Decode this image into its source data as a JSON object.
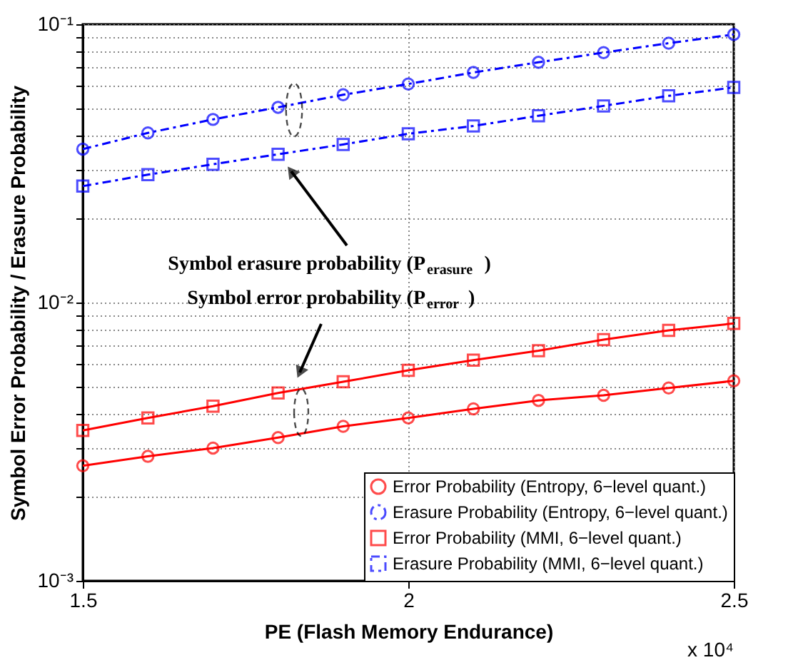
{
  "chart_data": {
    "type": "line",
    "xlabel": "PE (Flash Memory Endurance)",
    "ylabel": "Symbol Error Probability / Erasure Probability",
    "x": [
      1.5,
      1.6,
      1.7,
      1.8,
      1.9,
      2.0,
      2.1,
      2.2,
      2.3,
      2.4,
      2.5
    ],
    "series": [
      {
        "name": "Error Probability (Entropy, 6−level quant.)",
        "color": "#ff0000",
        "marker": "circle",
        "line_style": "solid",
        "values": [
          0.00259,
          0.0028,
          0.003,
          0.00327,
          0.00359,
          0.00385,
          0.00415,
          0.00445,
          0.00464,
          0.00493,
          0.00523
        ]
      },
      {
        "name": "Erasure Probability (Entropy, 6−level quant.)",
        "color": "#0000ff",
        "marker": "circle",
        "line_style": "dashed",
        "values": [
          0.0356,
          0.0407,
          0.0455,
          0.0503,
          0.0558,
          0.061,
          0.0671,
          0.073,
          0.0791,
          0.0855,
          0.0919
        ]
      },
      {
        "name": "Error Probability (MMI, 6−level quant.)",
        "color": "#ff0000",
        "marker": "square",
        "line_style": "solid",
        "values": [
          0.00347,
          0.00385,
          0.00424,
          0.00473,
          0.00519,
          0.00571,
          0.00621,
          0.00671,
          0.00736,
          0.00794,
          0.00841
        ]
      },
      {
        "name": "Erasure Probability (MMI, 6−level quant.)",
        "color": "#0000ff",
        "marker": "square",
        "line_style": "dashed",
        "values": [
          0.0262,
          0.0288,
          0.0314,
          0.0341,
          0.037,
          0.0404,
          0.0431,
          0.0469,
          0.0509,
          0.0553,
          0.0593
        ]
      }
    ],
    "log": "y",
    "xlim": [
      1.5,
      2.5
    ],
    "ylim": [
      0.001,
      0.1
    ],
    "xticks": [
      1.5,
      2,
      2.5
    ],
    "yticks": [
      {
        "value": 0.001,
        "label": "10⁻³"
      },
      {
        "value": 0.002,
        "label": null
      },
      {
        "value": 0.003,
        "label": null
      },
      {
        "value": 0.004,
        "label": null
      },
      {
        "value": 0.005,
        "label": null
      },
      {
        "value": 0.006,
        "label": null
      },
      {
        "value": 0.007,
        "label": null
      },
      {
        "value": 0.008,
        "label": null
      },
      {
        "value": 0.009,
        "label": null
      },
      {
        "value": 0.01,
        "label": "10⁻²"
      },
      {
        "value": 0.02,
        "label": null
      },
      {
        "value": 0.03,
        "label": null
      },
      {
        "value": 0.04,
        "label": null
      },
      {
        "value": 0.05,
        "label": null
      },
      {
        "value": 0.06,
        "label": null
      },
      {
        "value": 0.07,
        "label": null
      },
      {
        "value": 0.08,
        "label": null
      },
      {
        "value": 0.09,
        "label": null
      },
      {
        "value": 0.1,
        "label": "10⁻¹"
      }
    ],
    "grid": true,
    "legend": "bottom right",
    "annotations": [
      "Symbol erasure probability (P$_{erasure}$)",
      "Symbol error probability (P$_{error}$)",
      "x 10⁴"
    ]
  }
}
